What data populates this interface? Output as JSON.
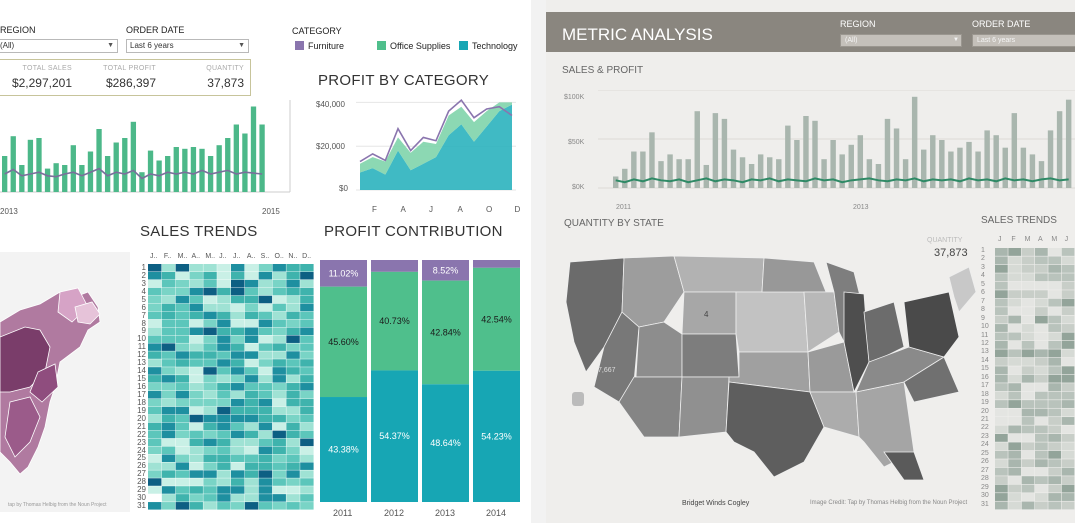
{
  "left": {
    "filters": {
      "region_label": "REGION",
      "region_value": "(All)",
      "order_date_label": "ORDER DATE",
      "order_date_value": "Last 6 years",
      "category_label": "CATEGORY"
    },
    "legend": [
      {
        "name": "Furniture",
        "color": "#8a75ae"
      },
      {
        "name": "Office Supplies",
        "color": "#4fbf8c"
      },
      {
        "name": "Technology",
        "color": "#17a6b4"
      }
    ],
    "kpis": [
      {
        "label": "TOTAL SALES",
        "value": "$2,297,201"
      },
      {
        "label": "TOTAL PROFIT",
        "value": "$286,397"
      },
      {
        "label": "QUANTITY",
        "value": "37,873"
      }
    ],
    "sales_chart": {
      "x_labels": [
        "2013",
        "2015"
      ],
      "bars": [
        40,
        62,
        30,
        58,
        60,
        26,
        32,
        30,
        52,
        30,
        45,
        70,
        40,
        55,
        60,
        78,
        22,
        46,
        35,
        40,
        50,
        48,
        50,
        48,
        40,
        52,
        60,
        75,
        65,
        95,
        75
      ],
      "profit_line": [
        20,
        25,
        18,
        20,
        22,
        18,
        17,
        20,
        22,
        18,
        22,
        26,
        18,
        22,
        20,
        24,
        15,
        20,
        18,
        22,
        20,
        22,
        20,
        24,
        20,
        22,
        24,
        20,
        22,
        21,
        20
      ]
    },
    "profit_by_category": {
      "title": "PROFIT BY CATEGORY",
      "y_ticks": [
        "$40,000",
        "$20,000",
        "$0"
      ],
      "x_labels": [
        "F",
        "A",
        "J",
        "A",
        "O",
        "D"
      ],
      "technology": [
        8000,
        10000,
        7000,
        18000,
        9000,
        12000,
        15000,
        25000,
        30000,
        22000,
        29000,
        36000,
        39000
      ],
      "office": [
        4000,
        5000,
        6000,
        6000,
        8000,
        10000,
        6000,
        9000,
        8000,
        9000,
        7000,
        4000,
        1000
      ],
      "furniture": [
        1000,
        1500,
        500,
        4000,
        1000,
        2000,
        1500,
        2000,
        3000,
        2000,
        1000,
        -2000,
        -6000
      ]
    },
    "sales_trends": {
      "title": "SALES TRENDS",
      "months": [
        "J..",
        "F..",
        "M..",
        "A..",
        "M..",
        "J..",
        "J..",
        "A..",
        "S..",
        "O..",
        "N..",
        "D.."
      ],
      "days": [
        "1",
        "2",
        "3",
        "4",
        "5",
        "6",
        "7",
        "8",
        "9",
        "10",
        "11",
        "12",
        "13",
        "14",
        "15",
        "16",
        "17",
        "18",
        "19",
        "20",
        "21",
        "22",
        "23",
        "24",
        "25",
        "26",
        "27",
        "28",
        "29",
        "30",
        "31"
      ]
    },
    "profit_contribution": {
      "title": "PROFIT CONTRIBUTION",
      "years": [
        "2011",
        "2012",
        "2013",
        "2014"
      ],
      "furniture": [
        11.02,
        4.9,
        8.52,
        3.23
      ],
      "office": [
        45.6,
        40.73,
        42.84,
        42.54
      ],
      "technology": [
        43.38,
        54.37,
        48.64,
        54.23
      ],
      "furniture_labels": [
        "11.02%",
        "",
        "8.52%",
        ""
      ],
      "office_labels": [
        "45.60%",
        "40.73%",
        "42.84%",
        "42.54%"
      ],
      "technology_labels": [
        "43.38%",
        "54.37%",
        "48.64%",
        "54.23%"
      ]
    },
    "map_credit": "tap by Thomas Helbig from the Noun Project"
  },
  "right": {
    "title": "METRIC ANALYSIS",
    "region_label": "REGION",
    "region_value": "(All)",
    "order_date_label": "ORDER DATE",
    "order_date_value": "Last 6 years",
    "sales_profit_title": "SALES & PROFIT",
    "y_ticks": [
      "$100K",
      "$50K",
      "$0K"
    ],
    "x_labels": [
      "2011",
      "2013"
    ],
    "bars": [
      12,
      20,
      38,
      38,
      58,
      28,
      35,
      30,
      30,
      80,
      24,
      78,
      72,
      40,
      32,
      25,
      35,
      32,
      30,
      65,
      50,
      75,
      70,
      30,
      50,
      35,
      45,
      55,
      30,
      25,
      72,
      62,
      30,
      95,
      40,
      55,
      50,
      38,
      42,
      48,
      38,
      60,
      55,
      42,
      78,
      42,
      35,
      28,
      60,
      80,
      92
    ],
    "profit_line": [
      8,
      6,
      9,
      7,
      10,
      8,
      7,
      9,
      6,
      8,
      10,
      7,
      9,
      8,
      6,
      9,
      8,
      10,
      7,
      9,
      8,
      7,
      10,
      8,
      9,
      6,
      8,
      9,
      10,
      8,
      7,
      9,
      8,
      10,
      7,
      9,
      8,
      9,
      7,
      10,
      8,
      9,
      7,
      10,
      8,
      9,
      7,
      9,
      10,
      8,
      9
    ],
    "quantity_title": "QUANTITY BY STATE",
    "quantity_label": "QUANTITY",
    "quantity_value": "37,873",
    "sales_trends_title": "SALES TRENDS",
    "months": [
      "J",
      "F",
      "M",
      "A",
      "M",
      "J"
    ],
    "days": [
      "1",
      "2",
      "3",
      "4",
      "5",
      "6",
      "7",
      "8",
      "9",
      "10",
      "11",
      "12",
      "13",
      "14",
      "15",
      "16",
      "17",
      "18",
      "19",
      "20",
      "21",
      "22",
      "23",
      "24",
      "25",
      "26",
      "27",
      "28",
      "29",
      "30",
      "31"
    ],
    "state_labels": [
      "4",
      "7,667"
    ],
    "author": "Bridget Winds Cogley",
    "credit": "Image Credit: Tap by Thomas Helbig from the Noun Project"
  }
}
